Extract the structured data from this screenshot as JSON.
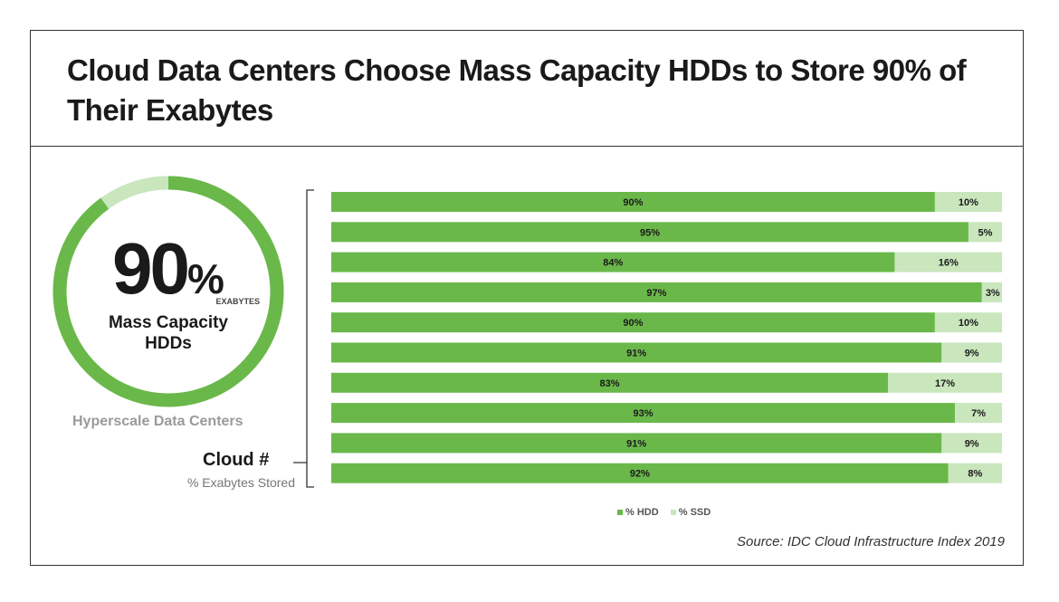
{
  "title": "Cloud Data Centers Choose Mass Capacity HDDs to Store 90% of Their Exabytes",
  "donut": {
    "value": 90,
    "number": "90",
    "percent_sign": "%",
    "unit": "EXABYTES",
    "caption_line1": "Mass Capacity",
    "caption_line2": "HDDs",
    "subtitle": "Hyperscale Data Centers"
  },
  "bracket_label": {
    "title": "Cloud #",
    "subtitle": "% Exabytes Stored"
  },
  "source": "Source: IDC Cloud Infrastructure Index 2019",
  "colors": {
    "hdd": "#6ab84a",
    "ssd": "#c9e6bd",
    "text": "#1a1a1a",
    "frame": "#333333"
  },
  "chart_data": {
    "type": "bar",
    "orientation": "horizontal",
    "stacked": true,
    "categories": [
      "",
      "",
      "",
      "",
      "",
      "",
      "",
      "",
      "",
      ""
    ],
    "series": [
      {
        "name": "% HDD",
        "values": [
          90,
          95,
          84,
          97,
          90,
          91,
          83,
          93,
          91,
          92
        ],
        "labels": [
          "90%",
          "95%",
          "84%",
          "97%",
          "90%",
          "91%",
          "83%",
          "93%",
          "91%",
          "92%"
        ]
      },
      {
        "name": "% SSD",
        "values": [
          10,
          5,
          16,
          3,
          10,
          9,
          17,
          7,
          9,
          8
        ],
        "labels": [
          "10%",
          "5%",
          "16%",
          "3%",
          "10%",
          "9%",
          "17%",
          "7%",
          "9%",
          "8%"
        ]
      }
    ],
    "xlim": [
      0,
      100
    ],
    "legend": "bottom-center",
    "grid": false
  }
}
